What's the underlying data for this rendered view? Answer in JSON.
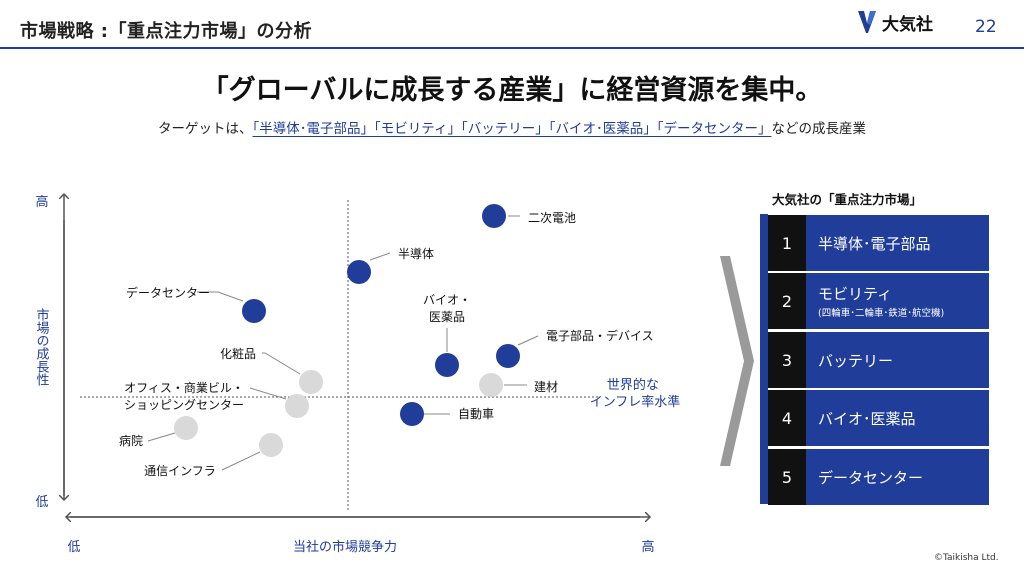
{
  "header": {
    "title": "市場戦略 :「重点注力市場」の分析",
    "brand": "大気社",
    "page_number": "22"
  },
  "headline": "「グローバルに成長する産業」に経営資源を集中。",
  "subline": {
    "prefix": "ターゲットは、",
    "highlight": "「半導体･電子部品」「モビリティ」「バッテリー」「バイオ･医薬品」「データセンター」",
    "suffix": "などの成長産業"
  },
  "chart_data": {
    "type": "scatter",
    "y_axis": {
      "label": "市場の成長性",
      "high": "高",
      "low": "低"
    },
    "x_axis": {
      "label": "当社の市場競争力",
      "high": "高",
      "low": "低"
    },
    "reference_line_label": "世界的な\nインフレ率水準",
    "series": [
      {
        "group": "focus",
        "color": "#1f3d99",
        "points": [
          {
            "label": "二次電池"
          },
          {
            "label": "半導体"
          },
          {
            "label": "データセンター"
          },
          {
            "label": "バイオ・\n医薬品"
          },
          {
            "label": "電子部品・デバイス"
          },
          {
            "label": "自動車"
          }
        ]
      },
      {
        "group": "other",
        "color": "#d9d9d9",
        "points": [
          {
            "label": "化粧品"
          },
          {
            "label": "オフィス・商業ビル・\nショッピングセンター"
          },
          {
            "label": "建材"
          },
          {
            "label": "病院"
          },
          {
            "label": "通信インフラ"
          }
        ]
      }
    ]
  },
  "panel": {
    "title": "大気社の「重点注力市場」",
    "items": [
      {
        "number": "1",
        "label": "半導体･電子部品",
        "note": ""
      },
      {
        "number": "2",
        "label": "モビリティ",
        "note": "(四輪車･二輪車･鉄道･航空機)"
      },
      {
        "number": "3",
        "label": "バッテリー",
        "note": ""
      },
      {
        "number": "4",
        "label": "バイオ･医薬品",
        "note": ""
      },
      {
        "number": "5",
        "label": "データセンター",
        "note": ""
      }
    ]
  },
  "copyright": "©Taikisha Ltd.",
  "colors": {
    "accent": "#1f3d99",
    "muted": "#d9d9d9",
    "text": "#1a1a1a"
  }
}
